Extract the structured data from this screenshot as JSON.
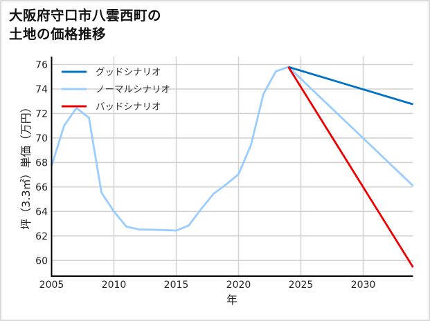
{
  "title": "大阪府守口市八雲西町の\n土地の価格推移",
  "chart_data": {
    "type": "line",
    "title": "大阪府守口市八雲西町の土地の価格推移",
    "xlabel": "年",
    "ylabel": "坪（3.3㎡）単価（万円）",
    "xlim": [
      2005,
      2034
    ],
    "ylim": [
      58.7,
      76.7
    ],
    "x_ticks": [
      2005,
      2010,
      2015,
      2020,
      2025,
      2030
    ],
    "y_ticks": [
      60,
      62,
      64,
      66,
      68,
      70,
      72,
      74,
      76
    ],
    "grid": true,
    "legend_position": "upper left",
    "series": [
      {
        "name": "グッドシナリオ",
        "color": "#0072c6",
        "x": [
          2024,
          2034
        ],
        "values": [
          75.8,
          72.75
        ]
      },
      {
        "name": "ノーマルシナリオ",
        "color": "#99ccff",
        "x": [
          2005,
          2006,
          2007,
          2008,
          2009,
          2010,
          2011,
          2012,
          2013,
          2014,
          2015,
          2016,
          2017,
          2018,
          2019,
          2020,
          2021,
          2022,
          2023,
          2024,
          2034
        ],
        "values": [
          67.7,
          71.0,
          72.45,
          71.65,
          65.55,
          64.0,
          62.76,
          62.53,
          62.52,
          62.48,
          62.44,
          62.85,
          64.2,
          65.45,
          66.2,
          67.05,
          69.45,
          73.6,
          75.45,
          75.8,
          66.1
        ]
      },
      {
        "name": "バッドシナリオ",
        "color": "#ee0000",
        "x": [
          2024,
          2034
        ],
        "values": [
          75.8,
          59.45
        ]
      }
    ]
  }
}
